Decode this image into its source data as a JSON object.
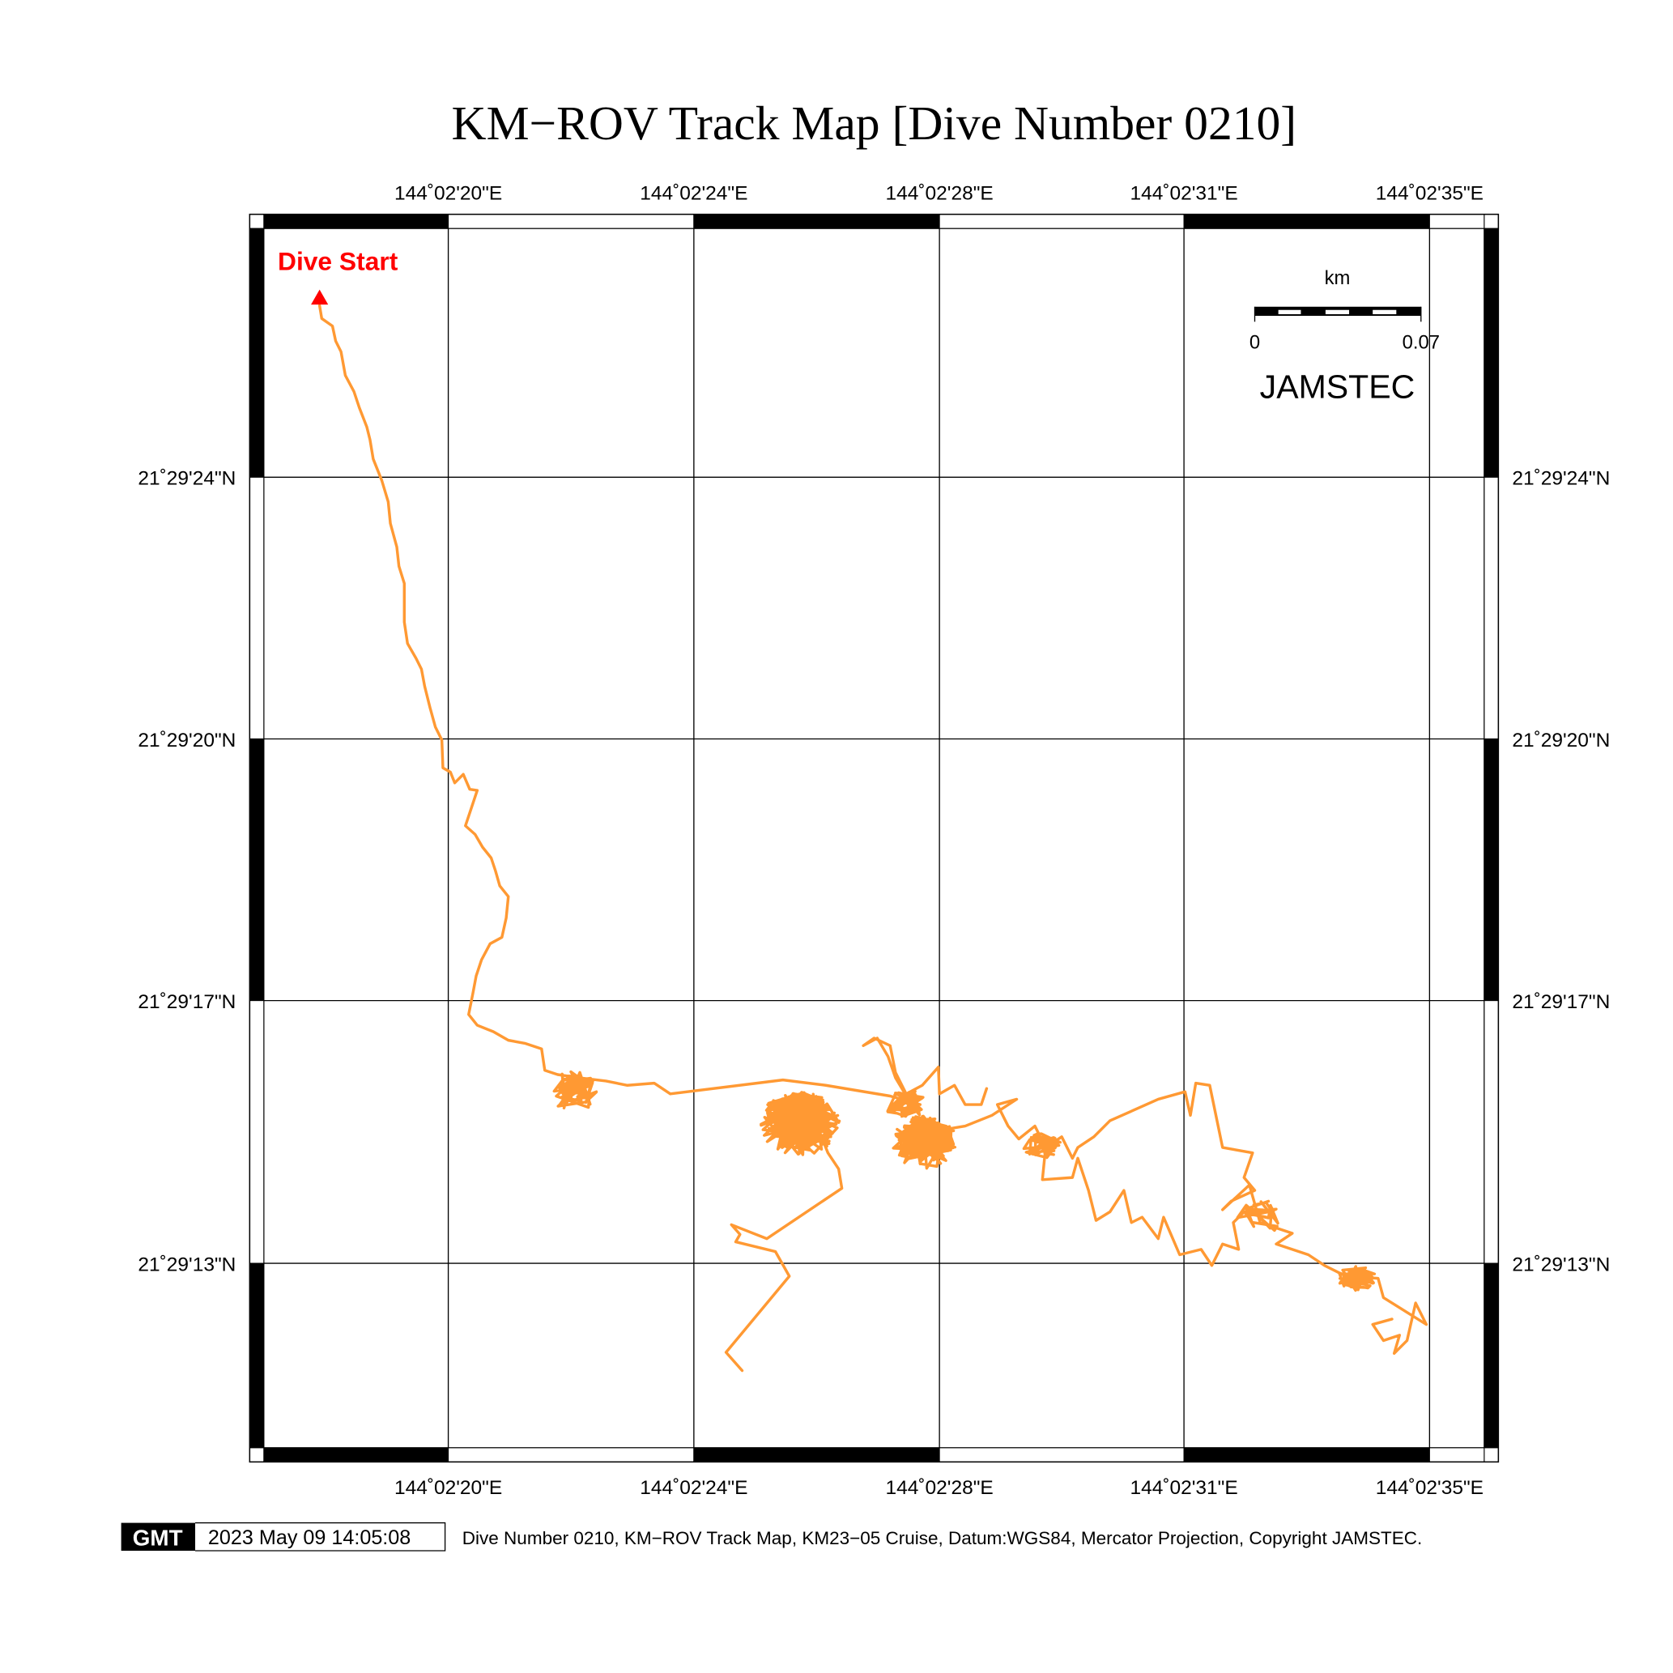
{
  "title": "KM−ROV Track Map [Dive Number 0210]",
  "map": {
    "lon_labels": [
      "144˚02'20\"E",
      "144˚02'24\"E",
      "144˚02'28\"E",
      "144˚02'31\"E",
      "144˚02'35\"E"
    ],
    "lat_labels": [
      "21˚29'24\"N",
      "21˚29'20\"N",
      "21˚29'17\"N",
      "21˚29'13\"N"
    ],
    "start_label": "Dive Start",
    "track_color": "#ff9933",
    "start_color": "#ff0000",
    "scale_bar": {
      "unit": "km",
      "min_label": "0",
      "max_label": "0.07"
    },
    "watermark": "JAMSTEC"
  },
  "footer": {
    "logo": "GMT",
    "timestamp": "2023 May 09 14:05:08",
    "caption": "Dive Number 0210, KM−ROV Track Map, KM23−05 Cruise, Datum:WGS84, Mercator Projection, Copyright JAMSTEC."
  }
}
